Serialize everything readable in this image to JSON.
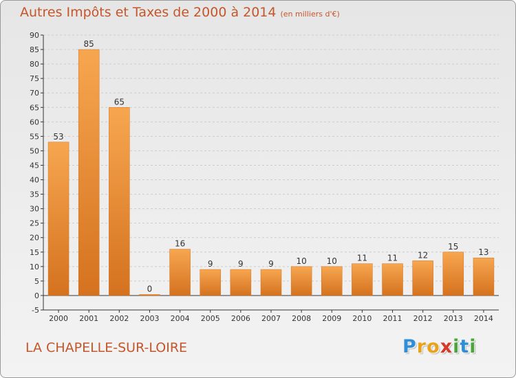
{
  "title": "Autres Impôts et Taxes de 2000 à 2014",
  "subtitle": "(en milliers d'€)",
  "commune": "LA CHAPELLE-SUR-LOIRE",
  "logo": {
    "text": "Proxiti",
    "letters": [
      {
        "char": "P",
        "color": "#2f8fd6"
      },
      {
        "char": "r",
        "color": "#e9a21b"
      },
      {
        "char": "o",
        "color": "#e9a21b"
      },
      {
        "char": "x",
        "color": "#d63a2a"
      },
      {
        "char": "i",
        "color": "#4aa63a"
      },
      {
        "char": "t",
        "color": "#2f8fd6"
      },
      {
        "char": "i",
        "color": "#4aa63a"
      }
    ]
  },
  "colors": {
    "title": "#c4562a",
    "bar_light": "#f7a650",
    "bar_dark": "#d4721f",
    "grid": "#cccccc",
    "axis": "#333333",
    "text": "#333333"
  },
  "chart_data": {
    "type": "bar",
    "title": "Autres Impôts et Taxes de 2000 à 2014",
    "subtitle": "(en milliers d'€)",
    "categories": [
      "2000",
      "2001",
      "2002",
      "2003",
      "2004",
      "2005",
      "2006",
      "2007",
      "2008",
      "2009",
      "2010",
      "2011",
      "2012",
      "2013",
      "2014"
    ],
    "values": [
      53,
      85,
      65,
      0,
      16,
      9,
      9,
      9,
      10,
      10,
      11,
      11,
      12,
      15,
      13
    ],
    "value_labels": [
      "53",
      "85",
      "65",
      "0",
      "16",
      "9",
      "9",
      "9",
      "10",
      "10",
      "11",
      "11",
      "12",
      "15",
      "13"
    ],
    "ylim": [
      -5,
      90
    ],
    "yticks": [
      "-5",
      "0",
      "5",
      "10",
      "15",
      "20",
      "25",
      "30",
      "35",
      "40",
      "45",
      "50",
      "55",
      "60",
      "65",
      "70",
      "75",
      "80",
      "85",
      "90"
    ],
    "grid": true,
    "legend": "none",
    "xlabel": "",
    "ylabel": ""
  }
}
